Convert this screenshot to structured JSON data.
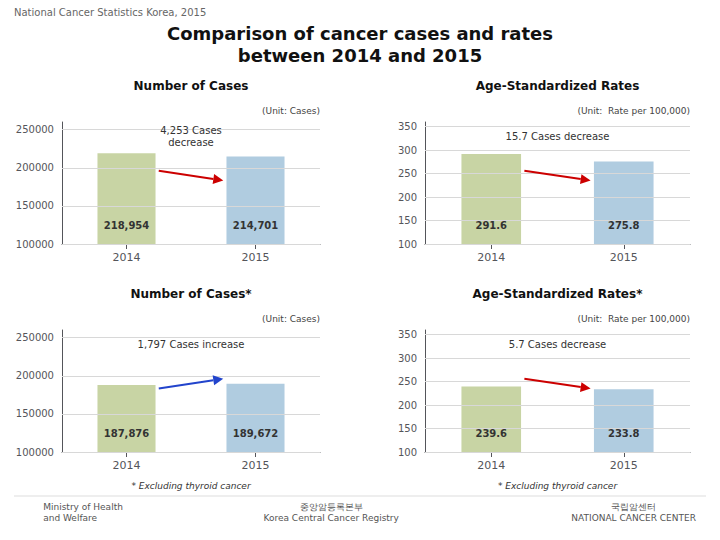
{
  "title": "Comparison of cancer cases and rates\nbetween 2014 and 2015",
  "subtitle": "National Cancer Statistics Korea, 2015",
  "annotations": [
    "Ministry of Health\nand Welfare",
    "중앙암등록본부\nKorea Central Cancer Registry",
    "국립암센터\nNATIONAL CANCER CENTER"
  ],
  "chart_data": [
    {
      "type": "bar",
      "title": "Number of Cases",
      "ylabel": "(Unit: Cases)",
      "categories": [
        "2014",
        "2015"
      ],
      "values": [
        218954,
        214701
      ],
      "value_labels": [
        "218,954",
        "214,701"
      ],
      "colors": [
        "#c8d4a4",
        "#b0cce0"
      ],
      "ylim": [
        100000,
        260000
      ],
      "yticks": [
        100000,
        150000,
        200000,
        250000
      ],
      "grid": true,
      "data_labels": true,
      "annotations": [
        {
          "text": "4,253 Cases\ndecrease",
          "color": "#cc0000"
        }
      ]
    },
    {
      "type": "bar",
      "title": "Age-Standardized Rates",
      "ylabel": "(Unit:  Rate per 100,000)",
      "categories": [
        "2014",
        "2015"
      ],
      "values": [
        291.6,
        275.8
      ],
      "value_labels": [
        "291.6",
        "275.8"
      ],
      "colors": [
        "#c8d4a4",
        "#b0cce0"
      ],
      "ylim": [
        100,
        360
      ],
      "yticks": [
        100,
        150,
        200,
        250,
        300,
        350
      ],
      "grid": true,
      "data_labels": true,
      "annotations": [
        {
          "text": "15.7 Cases decrease",
          "color": "#cc0000"
        }
      ]
    },
    {
      "type": "bar",
      "title": "Number of Cases*",
      "ylabel": "(Unit: Cases)",
      "categories": [
        "2014",
        "2015"
      ],
      "values": [
        187876,
        189672
      ],
      "value_labels": [
        "187,876",
        "189,672"
      ],
      "colors": [
        "#c8d4a4",
        "#b0cce0"
      ],
      "ylim": [
        100000,
        260000
      ],
      "yticks": [
        100000,
        150000,
        200000,
        250000
      ],
      "grid": true,
      "data_labels": true,
      "annotations": [
        {
          "text": "1,797 Cases increase",
          "color": "#2244cc"
        }
      ],
      "footnote": "* Excluding thyroid cancer"
    },
    {
      "type": "bar",
      "title": "Age-Standardized Rates*",
      "ylabel": "(Unit:  Rate per 100,000)",
      "categories": [
        "2014",
        "2015"
      ],
      "values": [
        239.6,
        233.8
      ],
      "value_labels": [
        "239.6",
        "233.8"
      ],
      "colors": [
        "#c8d4a4",
        "#b0cce0"
      ],
      "ylim": [
        100,
        360
      ],
      "yticks": [
        100,
        150,
        200,
        250,
        300,
        350
      ],
      "grid": true,
      "data_labels": true,
      "annotations": [
        {
          "text": "5.7 Cases decrease",
          "color": "#cc0000"
        }
      ],
      "footnote": "* Excluding thyroid cancer"
    }
  ]
}
